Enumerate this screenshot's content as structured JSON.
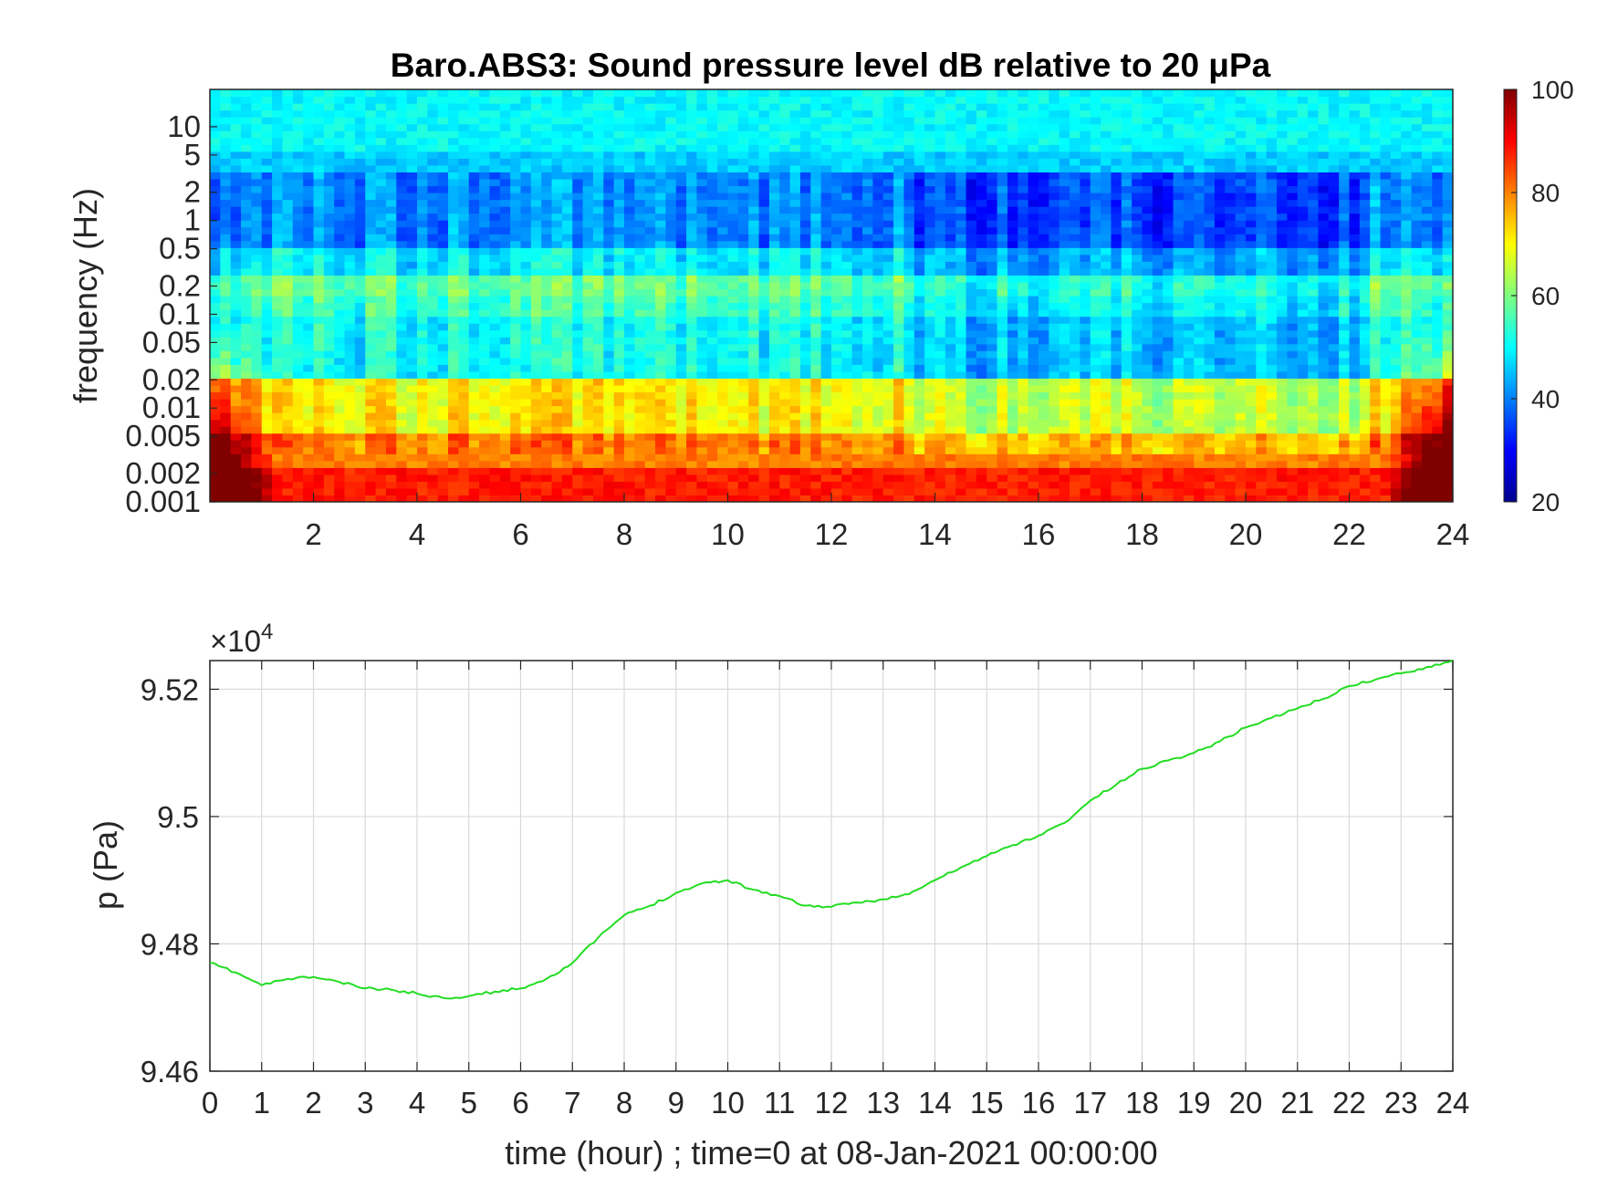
{
  "chart_data": [
    {
      "type": "heatmap",
      "title": "Baro.ABS3: Sound pressure level dB relative to 20 μPa",
      "ylabel": "frequency (Hz)",
      "y_scale": "log",
      "y_ticks": [
        "10",
        "5",
        "2",
        "1",
        "0.5",
        "0.2",
        "0.1",
        "0.05",
        "0.02",
        "0.01",
        "0.005",
        "0.002",
        "0.001"
      ],
      "x_ticks": [
        "2",
        "4",
        "6",
        "8",
        "10",
        "12",
        "14",
        "16",
        "18",
        "20",
        "22",
        "24"
      ],
      "xlim": [
        0,
        24
      ],
      "ylim": [
        0.001,
        25
      ],
      "colorbar": {
        "ticks": [
          "100",
          "80",
          "60",
          "40",
          "20"
        ],
        "range": [
          20,
          100
        ],
        "colormap": "jet"
      },
      "description_levels": [
        {
          "freq_band": "5-25 Hz",
          "level_db": 50
        },
        {
          "freq_band": "0.5-5 Hz",
          "level_db": 40
        },
        {
          "freq_band": "0.15-0.3 Hz",
          "level_db": 58
        },
        {
          "freq_band": "0.02-0.1 Hz",
          "level_db": 50
        },
        {
          "freq_band": "0.005-0.02 Hz",
          "level_db": 70
        },
        {
          "freq_band": "0.001-0.005 Hz",
          "level_db": 85
        }
      ]
    },
    {
      "type": "line",
      "exponent_label": "×10",
      "exponent_power": "4",
      "ylabel": "p (Pa)",
      "xlabel": "time (hour) ; time=0 at 08-Jan-2021 00:00:00",
      "x_ticks": [
        "0",
        "1",
        "2",
        "3",
        "4",
        "5",
        "6",
        "7",
        "8",
        "9",
        "10",
        "11",
        "12",
        "13",
        "14",
        "15",
        "16",
        "17",
        "18",
        "19",
        "20",
        "21",
        "22",
        "23",
        "24"
      ],
      "y_ticks": [
        "9.52",
        "9.5",
        "9.48",
        "9.46"
      ],
      "xlim": [
        0,
        24
      ],
      "ylim": [
        94600,
        95245
      ],
      "grid": true,
      "line_color": "#22dd22",
      "series": [
        {
          "x": [
            0,
            0.5,
            1,
            1.5,
            2,
            2.5,
            3,
            3.5,
            4,
            4.5,
            5,
            5.5,
            6,
            6.5,
            7,
            7.5,
            8,
            8.5,
            9,
            9.5,
            10,
            10.5,
            11,
            11.5,
            12,
            12.5,
            13,
            13.5,
            14,
            14.5,
            15,
            15.5,
            16,
            16.5,
            17,
            17.5,
            18,
            18.5,
            19,
            19.5,
            20,
            20.5,
            21,
            21.5,
            22,
            22.5,
            23,
            23.5,
            24
          ],
          "y": [
            94770,
            94755,
            94735,
            94745,
            94748,
            94740,
            94730,
            94728,
            94722,
            94715,
            94718,
            94725,
            94730,
            94745,
            94770,
            94810,
            94845,
            94860,
            94880,
            94895,
            94900,
            94885,
            94875,
            94860,
            94858,
            94865,
            94870,
            94878,
            94900,
            94920,
            94938,
            94955,
            94970,
            94990,
            95025,
            95050,
            95075,
            95088,
            95100,
            95118,
            95140,
            95155,
            95170,
            95185,
            95205,
            95215,
            95225,
            95235,
            95245
          ]
        }
      ]
    }
  ]
}
